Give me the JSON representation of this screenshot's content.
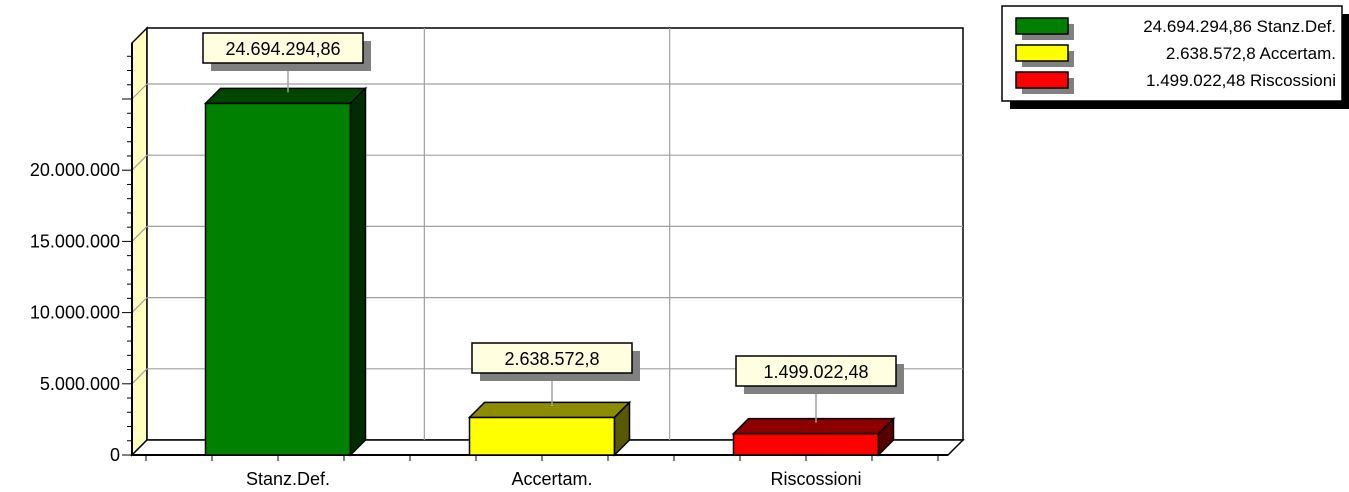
{
  "chart_data": {
    "type": "bar",
    "categories": [
      "Stanz.Def.",
      "Accertam.",
      "Riscossioni"
    ],
    "values": [
      24694294.86,
      2638572.8,
      1499022.48
    ],
    "data_labels": [
      "24.694.294,86",
      "2.638.572,8",
      "1.499.022,48"
    ],
    "colors": [
      "#008000",
      "#FFFF00",
      "#FF0000"
    ],
    "y_ticks": [
      {
        "value": 0,
        "label": "0"
      },
      {
        "value": 5000000,
        "label": "5.000.000"
      },
      {
        "value": 10000000,
        "label": "10.000.000"
      },
      {
        "value": 15000000,
        "label": "15.000.000"
      },
      {
        "value": 20000000,
        "label": "20.000.000"
      }
    ],
    "ylim": [
      0,
      30000000
    ],
    "grid": true,
    "legend": {
      "placement": "top-right",
      "entries": [
        {
          "label": "24.694.294,86 Stanz.Def.",
          "color": "#008000"
        },
        {
          "label": "2.638.572,8 Accertam.",
          "color": "#FFFF00"
        },
        {
          "label": "1.499.022,48 Riscossioni",
          "color": "#FF0000"
        }
      ]
    }
  }
}
